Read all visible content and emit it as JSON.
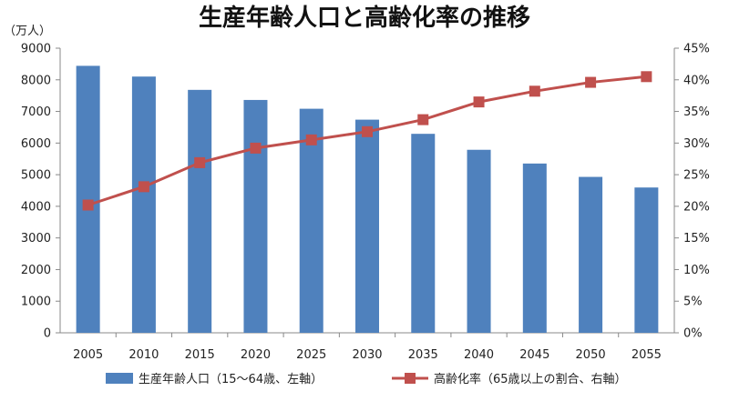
{
  "chart_data": {
    "type": "bar",
    "title": "生産年齢人口と高齢化率の推移",
    "y_unit_left": "（万人）",
    "categories": [
      "2005",
      "2010",
      "2015",
      "2020",
      "2025",
      "2030",
      "2035",
      "2040",
      "2045",
      "2050",
      "2055"
    ],
    "left_axis": {
      "min": 0,
      "max": 9000,
      "step": 1000,
      "tick_labels": [
        "0",
        "1000",
        "2000",
        "3000",
        "4000",
        "5000",
        "6000",
        "7000",
        "8000",
        "9000"
      ]
    },
    "right_axis": {
      "min": 0,
      "max": 45,
      "step": 5,
      "tick_labels": [
        "0%",
        "5%",
        "10%",
        "15%",
        "20%",
        "25%",
        "30%",
        "35%",
        "40%",
        "45%"
      ]
    },
    "grid": false,
    "legend_position": "bottom",
    "series": [
      {
        "name": "生産年齢人口（15〜64歳、左軸）",
        "type": "bar",
        "axis": "left",
        "color": "#4f81bd",
        "values": [
          8442,
          8103,
          7682,
          7363,
          7085,
          6740,
          6292,
          5787,
          5353,
          4930,
          4595
        ]
      },
      {
        "name": "高齢化率（65歳以上の割合、右軸）",
        "type": "line",
        "axis": "right",
        "color": "#c0504d",
        "marker": "square",
        "values": [
          20.2,
          23.1,
          26.9,
          29.2,
          30.5,
          31.8,
          33.7,
          36.5,
          38.2,
          39.6,
          40.5
        ]
      }
    ]
  }
}
